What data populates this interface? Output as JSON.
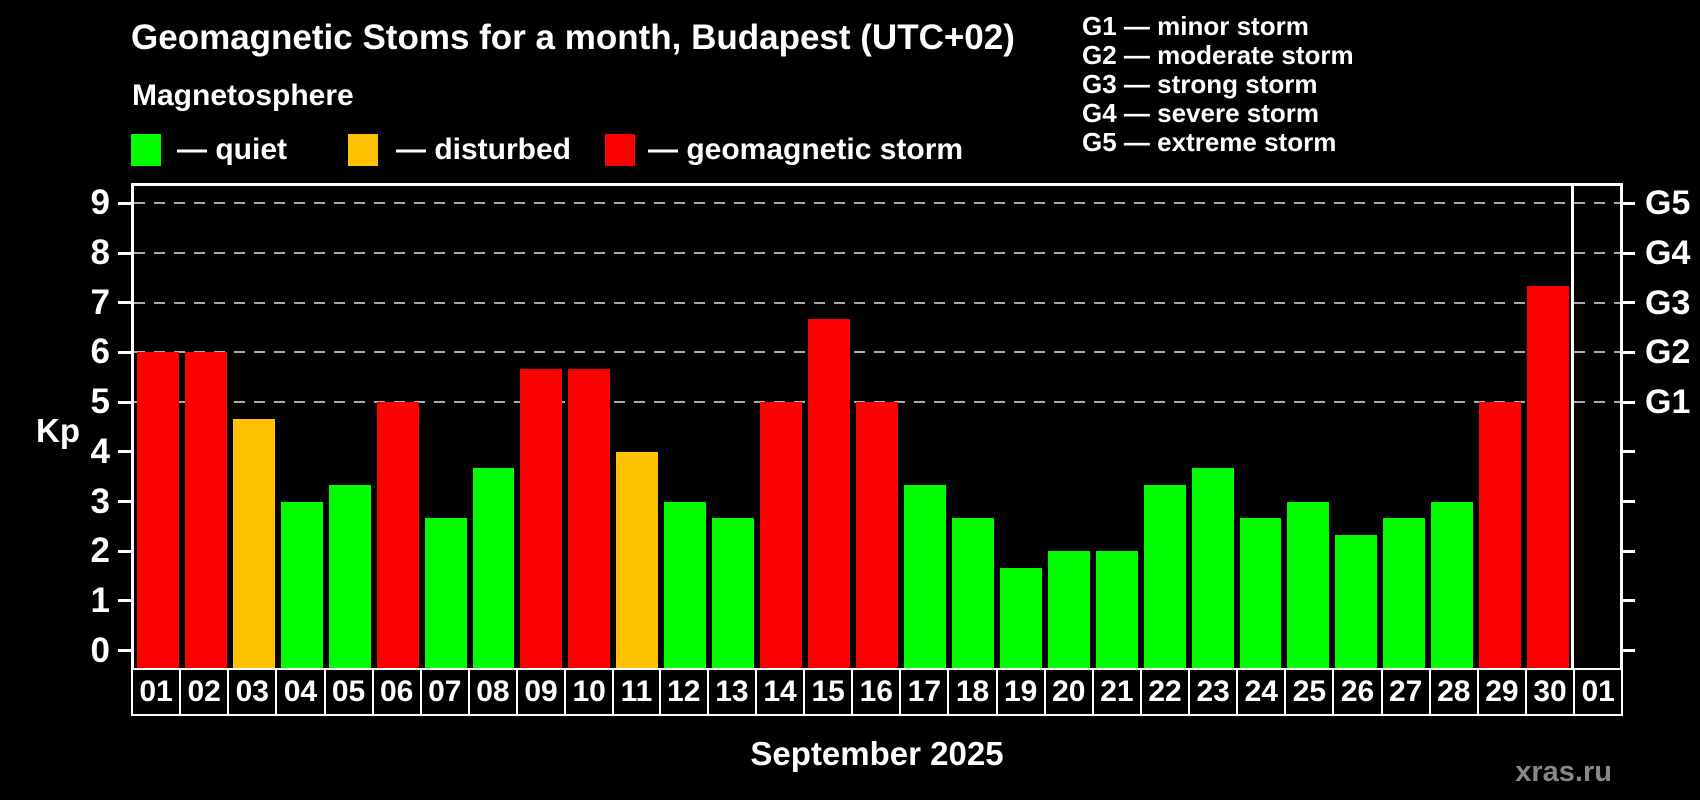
{
  "colors": {
    "background": "#000000",
    "axis": "#ffffff",
    "grid": "#aaaaaa",
    "quiet": "#00ff00",
    "disturbed": "#ffc000",
    "storm": "#ff0000",
    "watermark_color": "#888888"
  },
  "header": {
    "title": "Geomagnetic Stoms for a month, Budapest (UTC+02)",
    "legend_title": "Magnetosphere",
    "legend": [
      {
        "name": "quiet",
        "label": "— quiet",
        "color": "#00ff00"
      },
      {
        "name": "disturbed",
        "label": "— disturbed",
        "color": "#ffc000"
      },
      {
        "name": "storm",
        "label": "— geomagnetic storm",
        "color": "#ff0000"
      }
    ],
    "g_scale": [
      "G1 — minor storm",
      "G2 — moderate storm",
      "G3 — strong storm",
      "G4 — severe storm",
      "G5 — extreme storm"
    ]
  },
  "chart_data": {
    "type": "bar",
    "title": "Geomagnetic Stoms for a month, Budapest (UTC+02)",
    "xlabel": "September 2025",
    "ylabel": "Kp",
    "ylim": [
      0,
      9
    ],
    "yticks": [
      0,
      1,
      2,
      3,
      4,
      5,
      6,
      7,
      8,
      9
    ],
    "grid": "dashed horizontal at storm levels only",
    "gridlines_at_kp": [
      5,
      6,
      7,
      8,
      9
    ],
    "right_axis": [
      {
        "kp": 5,
        "label": "G1"
      },
      {
        "kp": 6,
        "label": "G2"
      },
      {
        "kp": 7,
        "label": "G3"
      },
      {
        "kp": 8,
        "label": "G4"
      },
      {
        "kp": 9,
        "label": "G5"
      }
    ],
    "categories": [
      "01",
      "02",
      "03",
      "04",
      "05",
      "06",
      "07",
      "08",
      "09",
      "10",
      "11",
      "12",
      "13",
      "14",
      "15",
      "16",
      "17",
      "18",
      "19",
      "20",
      "21",
      "22",
      "23",
      "24",
      "25",
      "26",
      "27",
      "28",
      "29",
      "30",
      "01"
    ],
    "values": [
      6,
      6,
      4.67,
      3,
      3.33,
      5,
      2.67,
      3.67,
      5.67,
      5.67,
      4,
      3,
      2.67,
      5,
      6.67,
      5,
      3.33,
      2.67,
      1.67,
      2,
      2,
      3.33,
      3.67,
      2.67,
      3,
      2.33,
      2.67,
      3,
      5,
      7.33,
      null
    ],
    "status": [
      "storm",
      "storm",
      "disturbed",
      "quiet",
      "quiet",
      "storm",
      "quiet",
      "quiet",
      "storm",
      "storm",
      "disturbed",
      "quiet",
      "quiet",
      "storm",
      "storm",
      "storm",
      "quiet",
      "quiet",
      "quiet",
      "quiet",
      "quiet",
      "quiet",
      "quiet",
      "quiet",
      "quiet",
      "quiet",
      "quiet",
      "quiet",
      "storm",
      "storm",
      null
    ],
    "month_separator_after_category_index": 29
  },
  "footer": {
    "watermark": "xras.ru"
  }
}
